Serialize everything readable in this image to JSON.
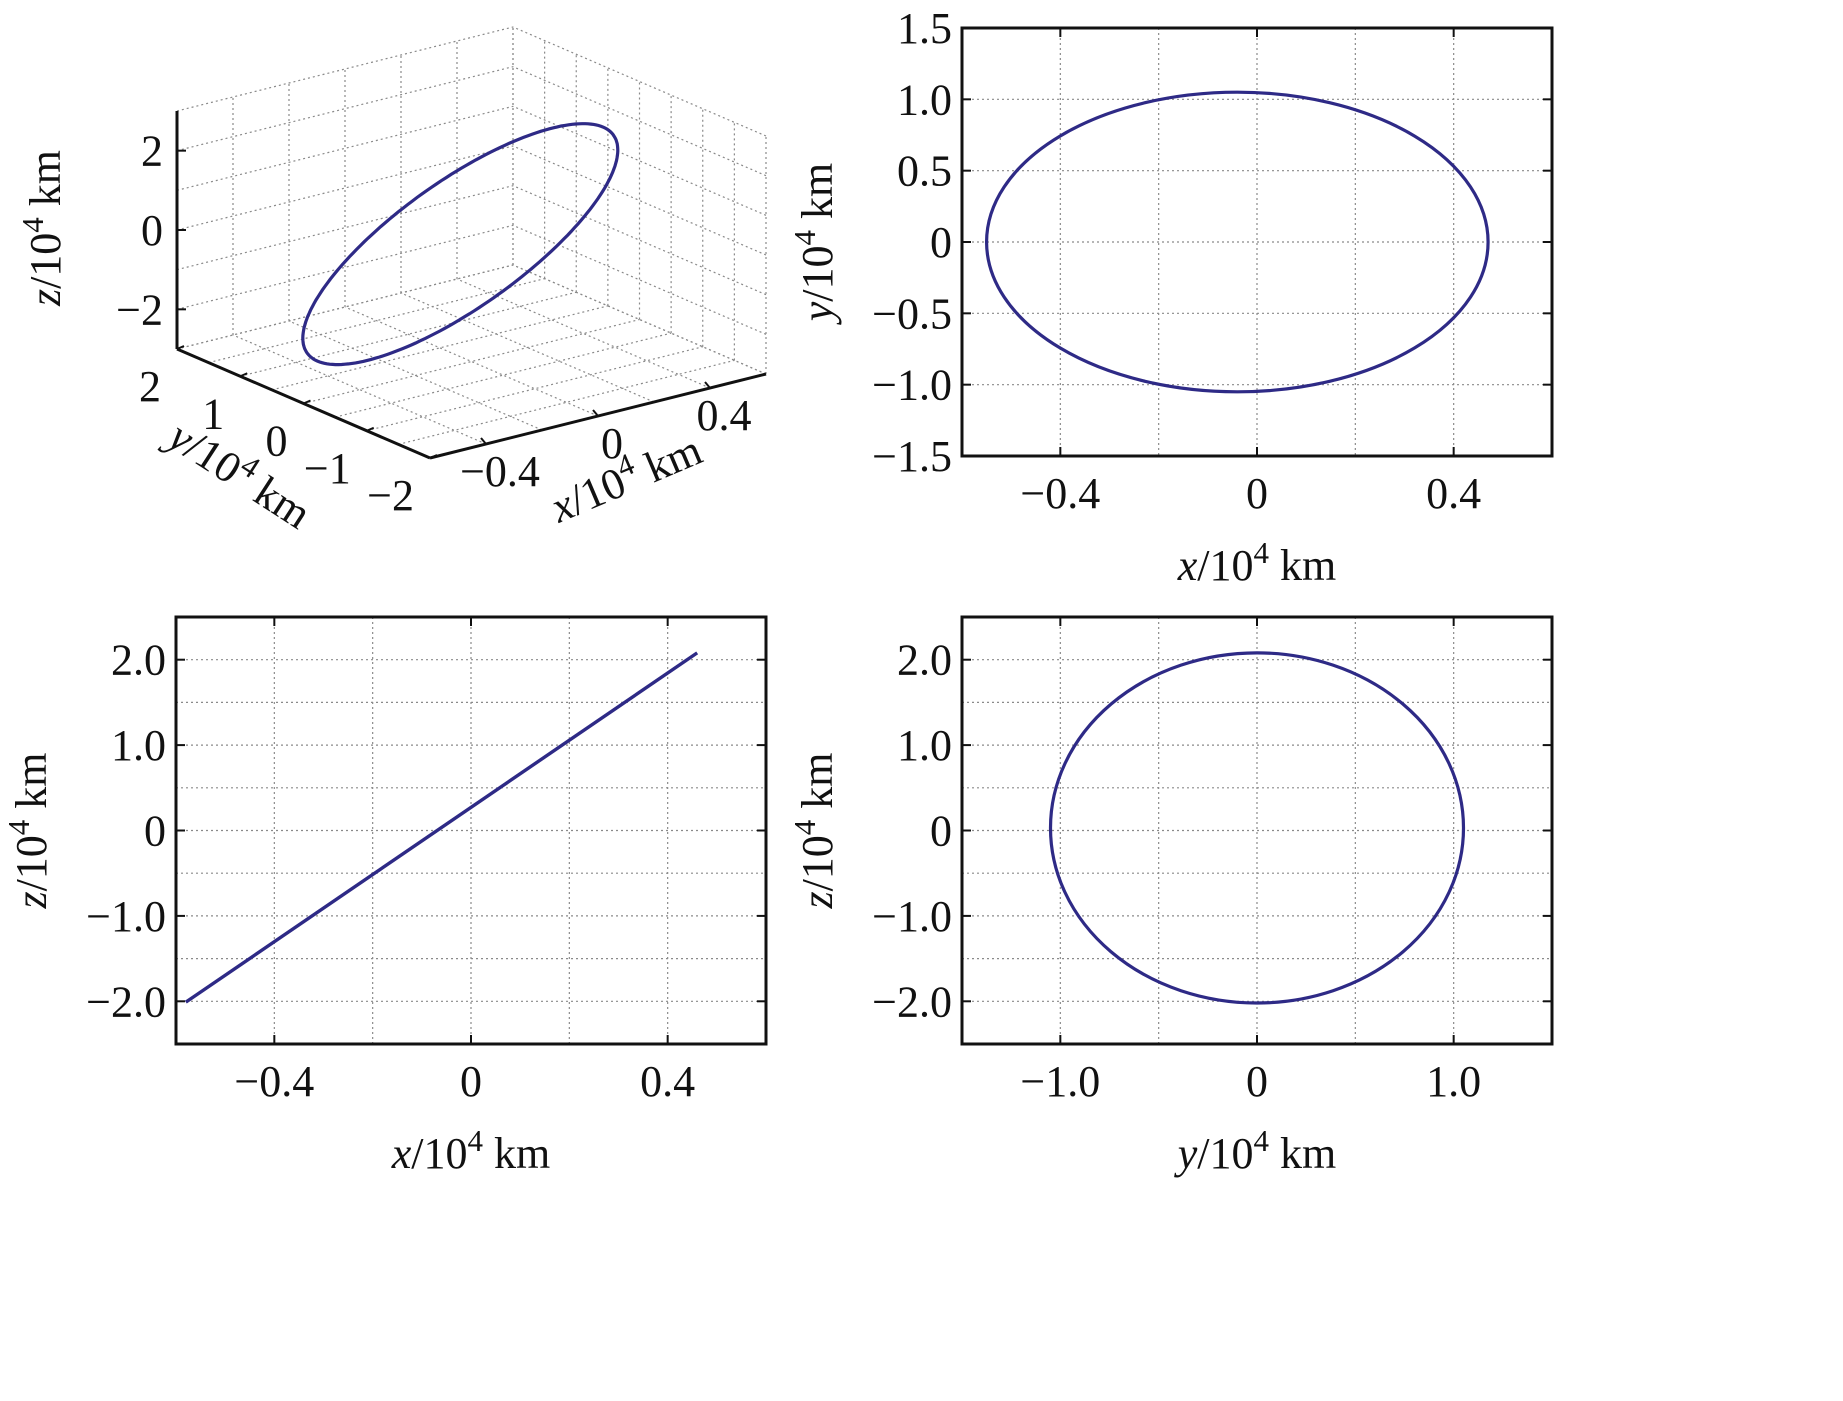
{
  "colors": {
    "series": "#2e2a86",
    "axis": "#111111",
    "grid": "#8a8a8a"
  },
  "chart_data": [
    {
      "id": "p3d",
      "type": "line3d",
      "series": [
        {
          "kind": "ellipse",
          "center": [
            -0.04,
            0,
            0.03
          ],
          "u": [
            0.51,
            0,
            2.05
          ],
          "v": [
            0,
            1.05,
            0
          ]
        }
      ],
      "xlabel": {
        "sym": "x",
        "unit": "/10",
        "exp": "4",
        "tail": " km"
      },
      "ylabel": {
        "sym": "y",
        "unit": "/10",
        "exp": "4",
        "tail": " km"
      },
      "zlabel": {
        "sym": "z",
        "unit": "/10",
        "exp": "4",
        "tail": " km"
      },
      "xlim": [
        -0.6,
        0.6
      ],
      "ylim": [
        -2,
        2
      ],
      "zlim": [
        -3,
        3
      ],
      "xticks": [
        -0.4,
        0,
        0.4
      ],
      "xtick_labels": [
        "−0.4",
        "0",
        "0.4"
      ],
      "yticks": [
        2,
        1,
        0,
        -1,
        -2
      ],
      "ytick_labels": [
        "2",
        "1",
        "0",
        "−1",
        "−2"
      ],
      "zticks": [
        2,
        0,
        -2
      ],
      "ztick_labels": [
        "2",
        "0",
        "−2"
      ],
      "grid": true
    },
    {
      "id": "pxy",
      "type": "line",
      "series": [
        {
          "kind": "ellipse",
          "center": [
            -0.04,
            0
          ],
          "radii": [
            0.51,
            1.05
          ]
        }
      ],
      "xlabel": {
        "sym": "x",
        "unit": "/10",
        "exp": "4",
        "tail": " km"
      },
      "ylabel": {
        "sym": "y",
        "unit": "/10",
        "exp": "4",
        "tail": " km"
      },
      "xlim": [
        -0.6,
        0.6
      ],
      "ylim": [
        -1.5,
        1.5
      ],
      "xticks": [
        -0.4,
        0,
        0.4
      ],
      "xtick_labels": [
        "−0.4",
        "0",
        "0.4"
      ],
      "yticks": [
        1.5,
        1.0,
        0.5,
        0,
        -0.5,
        -1.0,
        -1.5
      ],
      "ytick_labels": [
        "1.5",
        "1.0",
        "0.5",
        "0",
        "−0.5",
        "−1.0",
        "−1.5"
      ],
      "xgrid": [
        -0.4,
        -0.2,
        0,
        0.2,
        0.4
      ],
      "ygrid": [
        1.0,
        0.5,
        0,
        -0.5,
        -1.0
      ],
      "grid": true
    },
    {
      "id": "pxz",
      "type": "line",
      "series": [
        {
          "kind": "segment",
          "x": [
            -0.58,
            0.46
          ],
          "y": [
            -2.01,
            2.08
          ]
        }
      ],
      "xlabel": {
        "sym": "x",
        "unit": "/10",
        "exp": "4",
        "tail": " km"
      },
      "ylabel": {
        "sym": "z",
        "unit": "/10",
        "exp": "4",
        "tail": " km"
      },
      "xlim": [
        -0.6,
        0.6
      ],
      "ylim": [
        -2.5,
        2.5
      ],
      "xticks": [
        -0.4,
        0,
        0.4
      ],
      "xtick_labels": [
        "−0.4",
        "0",
        "0.4"
      ],
      "yticks": [
        2.0,
        1.0,
        0,
        -1.0,
        -2.0
      ],
      "ytick_labels": [
        "2.0",
        "1.0",
        "0",
        "−1.0",
        "−2.0"
      ],
      "xgrid": [
        -0.4,
        -0.2,
        0,
        0.2,
        0.4
      ],
      "ygrid": [
        2.0,
        1.5,
        1.0,
        0.5,
        0,
        -0.5,
        -1.0,
        -1.5,
        -2.0
      ],
      "grid": true
    },
    {
      "id": "pyz",
      "type": "line",
      "series": [
        {
          "kind": "ellipse",
          "center": [
            0,
            0.03
          ],
          "radii": [
            1.05,
            2.05
          ]
        }
      ],
      "xlabel": {
        "sym": "y",
        "unit": "/10",
        "exp": "4",
        "tail": " km"
      },
      "ylabel": {
        "sym": "z",
        "unit": "/10",
        "exp": "4",
        "tail": " km"
      },
      "xlim": [
        -1.5,
        1.5
      ],
      "ylim": [
        -2.5,
        2.5
      ],
      "xticks": [
        -1.0,
        0,
        1.0
      ],
      "xtick_labels": [
        "−1.0",
        "0",
        "1.0"
      ],
      "yticks": [
        2.0,
        1.0,
        0,
        -1.0,
        -2.0
      ],
      "ytick_labels": [
        "2.0",
        "1.0",
        "0",
        "−1.0",
        "−2.0"
      ],
      "xgrid": [
        -1.0,
        -0.5,
        0,
        0.5,
        1.0
      ],
      "ygrid": [
        2.0,
        1.5,
        1.0,
        0.5,
        0,
        -0.5,
        -1.0,
        -1.5,
        -2.0
      ],
      "grid": true
    }
  ]
}
